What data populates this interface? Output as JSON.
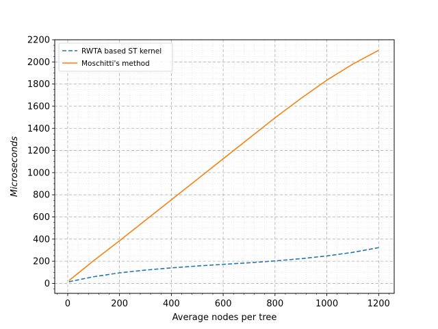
{
  "chart_data": {
    "type": "line",
    "xlabel": "Average nodes per tree",
    "ylabel": "Microseconds",
    "xlim": [
      -50,
      1260
    ],
    "ylim": [
      -90,
      2200
    ],
    "xticks": [
      0,
      200,
      400,
      600,
      800,
      1000,
      1200
    ],
    "yticks": [
      0,
      200,
      400,
      600,
      800,
      1000,
      1200,
      1400,
      1600,
      1800,
      2000,
      2200
    ],
    "grid": true,
    "legend_position": "top-left",
    "series": [
      {
        "name": "RWTA based ST kernel",
        "color": "#1f77b4",
        "style": "dashed",
        "x": [
          5,
          100,
          200,
          300,
          400,
          500,
          600,
          700,
          800,
          900,
          1000,
          1100,
          1200
        ],
        "y": [
          15,
          60,
          95,
          120,
          140,
          157,
          172,
          186,
          203,
          223,
          248,
          280,
          323
        ]
      },
      {
        "name": "Moschitti's method",
        "color": "#ff7f0e",
        "style": "solid",
        "x": [
          5,
          100,
          200,
          300,
          400,
          500,
          600,
          700,
          800,
          900,
          1000,
          1100,
          1200
        ],
        "y": [
          25,
          205,
          385,
          570,
          755,
          940,
          1125,
          1310,
          1495,
          1670,
          1835,
          1980,
          2105
        ]
      }
    ]
  }
}
